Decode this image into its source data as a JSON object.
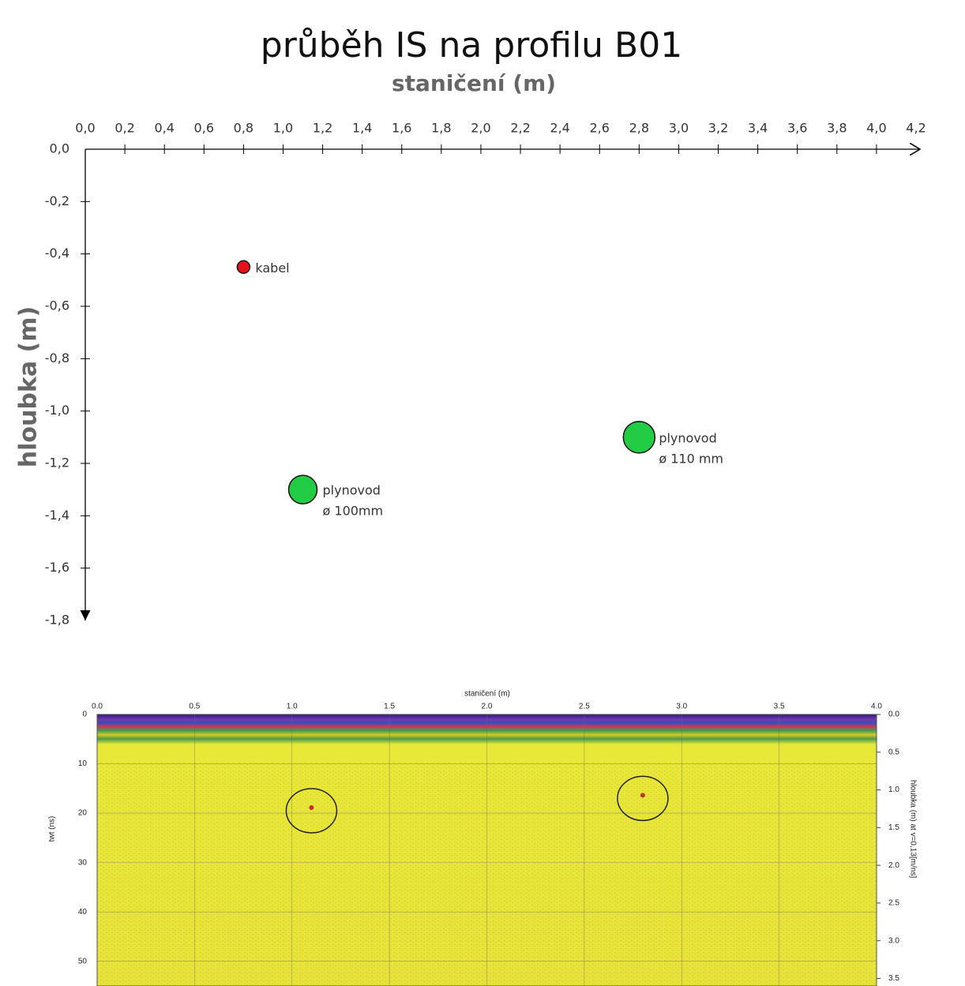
{
  "chart_data": [
    {
      "type": "scatter",
      "title": "průběh IS na profilu B01",
      "x_label": "staničení (m)",
      "y_label": "hloubka (m)",
      "xlim": [
        0,
        4.2
      ],
      "ylim": [
        -1.8,
        0
      ],
      "xticks": [
        {
          "value": 0,
          "label": "0,0"
        },
        {
          "value": 0.2,
          "label": "0,2"
        },
        {
          "value": 0.4,
          "label": "0,4"
        },
        {
          "value": 0.6,
          "label": "0,6"
        },
        {
          "value": 0.8,
          "label": "0,8"
        },
        {
          "value": 1.0,
          "label": "1,0"
        },
        {
          "value": 1.2,
          "label": "1,2"
        },
        {
          "value": 1.4,
          "label": "1,4"
        },
        {
          "value": 1.6,
          "label": "1,6"
        },
        {
          "value": 1.8,
          "label": "1,8"
        },
        {
          "value": 2.0,
          "label": "2,0"
        },
        {
          "value": 2.2,
          "label": "2,2"
        },
        {
          "value": 2.4,
          "label": "2,4"
        },
        {
          "value": 2.6,
          "label": "2,6"
        },
        {
          "value": 2.8,
          "label": "2,8"
        },
        {
          "value": 3.0,
          "label": "3,0"
        },
        {
          "value": 3.2,
          "label": "3,2"
        },
        {
          "value": 3.4,
          "label": "3,4"
        },
        {
          "value": 3.6,
          "label": "3,6"
        },
        {
          "value": 3.8,
          "label": "3,8"
        },
        {
          "value": 4.0,
          "label": "4,0"
        },
        {
          "value": 4.2,
          "label": "4,2"
        }
      ],
      "yticks": [
        {
          "value": 0,
          "label": "0,0"
        },
        {
          "value": -0.2,
          "label": "-0,2"
        },
        {
          "value": -0.4,
          "label": "-0,4"
        },
        {
          "value": -0.6,
          "label": "-0,6"
        },
        {
          "value": -0.8,
          "label": "-0,8"
        },
        {
          "value": -1.0,
          "label": "-1,0"
        },
        {
          "value": -1.2,
          "label": "-1,2"
        },
        {
          "value": -1.4,
          "label": "-1,4"
        },
        {
          "value": -1.6,
          "label": "-1,6"
        },
        {
          "value": -1.8,
          "label": "-1,8"
        }
      ],
      "series": [
        {
          "name": "kabel",
          "color": "#e8101a",
          "x": [
            0.8
          ],
          "values": [
            -0.45
          ]
        },
        {
          "name": "plynovod",
          "color": "#22cc44",
          "x": [
            1.1,
            2.8
          ],
          "values": [
            -1.3,
            -1.1
          ],
          "annotations": [
            "ø 100mm",
            "ø 110 mm"
          ]
        }
      ]
    },
    {
      "type": "radargram",
      "x_label": "staničení (m)",
      "y_label": "twt (ns)",
      "y2_label": "hloubka (m) at v=0,13[m/ns]",
      "xlim": [
        0,
        4.0
      ],
      "ylim": [
        0,
        55
      ],
      "y2lim": [
        0,
        3.6
      ],
      "xticks": [
        {
          "value": 0,
          "label": "0.0"
        },
        {
          "value": 0.5,
          "label": "0.5"
        },
        {
          "value": 1.0,
          "label": "1.0"
        },
        {
          "value": 1.5,
          "label": "1.5"
        },
        {
          "value": 2.0,
          "label": "2.0"
        },
        {
          "value": 2.5,
          "label": "2.5"
        },
        {
          "value": 3.0,
          "label": "3.0"
        },
        {
          "value": 3.5,
          "label": "3.5"
        },
        {
          "value": 4.0,
          "label": "4.0"
        }
      ],
      "yticks": [
        0,
        10,
        20,
        30,
        40,
        50
      ],
      "y2ticks": [
        {
          "value": 0,
          "label": "0.0"
        },
        {
          "value": 0.5,
          "label": "0.5"
        },
        {
          "value": 1.0,
          "label": "1.0"
        },
        {
          "value": 1.5,
          "label": "1.5"
        },
        {
          "value": 2.0,
          "label": "2.0"
        },
        {
          "value": 2.5,
          "label": "2.5"
        },
        {
          "value": 3.0,
          "label": "3.0"
        },
        {
          "value": 3.5,
          "label": "3.5"
        }
      ],
      "markers": {
        "x": [
          1.1,
          2.8
        ],
        "values": [
          19.5,
          17
        ]
      }
    }
  ]
}
